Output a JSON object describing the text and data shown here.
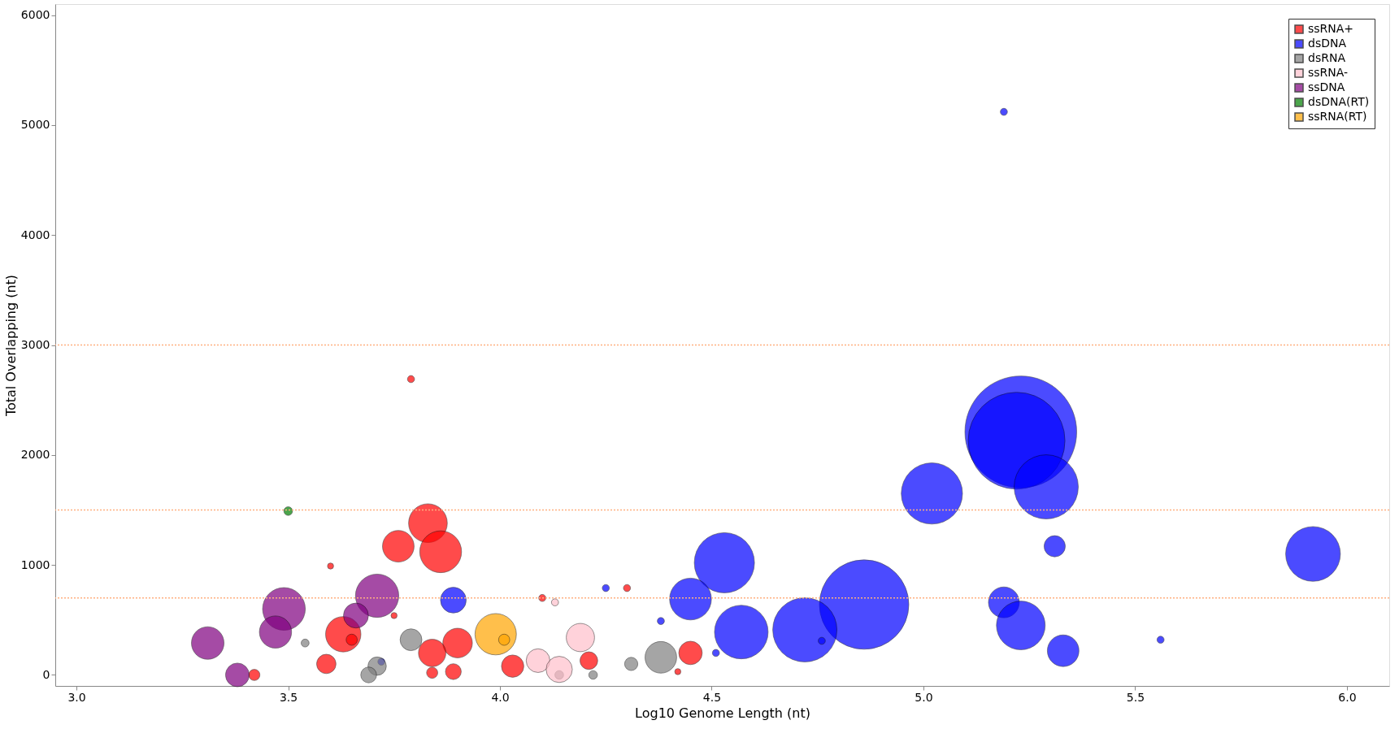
{
  "chart_data": {
    "type": "bubble",
    "xlabel": "Log10 Genome Length (nt)",
    "ylabel": "Total Overlapping (nt)",
    "xlim": [
      2.95,
      6.1
    ],
    "ylim": [
      -100,
      6100
    ],
    "xticks": [
      {
        "value": 3,
        "label": "3.0"
      },
      {
        "value": 3.5,
        "label": "3.5"
      },
      {
        "value": 4,
        "label": "4.0"
      },
      {
        "value": 4.5,
        "label": "4.5"
      },
      {
        "value": 5,
        "label": "5.0"
      },
      {
        "value": 5.5,
        "label": "5.5"
      },
      {
        "value": 6,
        "label": "6.0"
      }
    ],
    "yticks": [
      0,
      1000,
      2000,
      3000,
      4000,
      5000,
      6000
    ],
    "grid": false,
    "legend": "top right",
    "marker": "circle",
    "ref_lines": [
      {
        "axis": "y",
        "value": 3000,
        "color": "#ffb080",
        "line_style": "dotted"
      },
      {
        "axis": "y",
        "value": 1500,
        "color": "#ffb080",
        "line_style": "dotted"
      },
      {
        "axis": "y",
        "value": 700,
        "color": "#ffb080",
        "line_style": "dotted"
      }
    ],
    "series": [
      {
        "name": "ssRNA+",
        "color": "#ff0000",
        "x": [
          3.79,
          3.6,
          3.76,
          3.83,
          3.86,
          3.63,
          3.59,
          3.65,
          3.75,
          3.9,
          3.84,
          3.89,
          4.1,
          4.21,
          4.03,
          4.45,
          4.3,
          3.42,
          3.84,
          4.42
        ],
        "values": [
          2690,
          990,
          1170,
          1380,
          1120,
          370,
          100,
          320,
          540,
          290,
          200,
          30,
          700,
          130,
          80,
          200,
          790,
          0,
          20,
          30
        ],
        "sizes": [
          0.004,
          0.003,
          0.08,
          0.12,
          0.14,
          0.1,
          0.03,
          0.01,
          0.003,
          0.07,
          0.06,
          0.02,
          0.004,
          0.025,
          0.04,
          0.044,
          0.004,
          0.01,
          0.01,
          0.003
        ]
      },
      {
        "name": "dsDNA",
        "color": "#0000ff",
        "x": [
          5.19,
          5.23,
          5.22,
          5.29,
          5.02,
          4.53,
          5.31,
          5.92,
          4.86,
          4.72,
          4.57,
          4.45,
          5.19,
          5.23,
          5.33,
          3.89,
          4.25,
          4.38,
          4.51,
          5.56,
          4.76,
          3.72
        ],
        "values": [
          5120,
          2210,
          2130,
          1710,
          1650,
          1020,
          1170,
          1100,
          640,
          410,
          390,
          690,
          660,
          450,
          220,
          680,
          790,
          490,
          200,
          320,
          310,
          120
        ],
        "sizes": [
          0.004,
          1.0,
          0.75,
          0.33,
          0.3,
          0.29,
          0.036,
          0.24,
          0.64,
          0.33,
          0.23,
          0.14,
          0.076,
          0.19,
          0.08,
          0.053,
          0.004,
          0.004,
          0.004,
          0.004,
          0.004,
          0.004
        ]
      },
      {
        "name": "dsRNA",
        "color": "#808080",
        "x": [
          4.38,
          3.79,
          3.71,
          3.54,
          4.31,
          4.14,
          4.22,
          3.69
        ],
        "values": [
          160,
          320,
          80,
          290,
          100,
          0,
          0,
          0
        ],
        "sizes": [
          0.08,
          0.038,
          0.027,
          0.005,
          0.014,
          0.006,
          0.006,
          0.02
        ]
      },
      {
        "name": "ssRNA-",
        "color": "#ffc0cb",
        "x": [
          4.19,
          4.13,
          4.09,
          4.14
        ],
        "values": [
          340,
          660,
          130,
          50
        ],
        "sizes": [
          0.064,
          0.004,
          0.045,
          0.055
        ]
      },
      {
        "name": "ssDNA",
        "color": "#800080",
        "x": [
          3.71,
          3.66,
          3.49,
          3.47,
          3.31,
          3.38
        ],
        "values": [
          720,
          540,
          600,
          390,
          290,
          0
        ],
        "sizes": [
          0.15,
          0.05,
          0.146,
          0.083,
          0.085,
          0.045
        ]
      },
      {
        "name": "dsDNA(RT)",
        "color": "#008000",
        "x": [
          3.5
        ],
        "values": [
          1490
        ],
        "sizes": [
          0.006
        ]
      },
      {
        "name": "ssRNA(RT)",
        "color": "#ffa500",
        "x": [
          3.99,
          4.01
        ],
        "values": [
          370,
          320
        ],
        "sizes": [
          0.137,
          0.01
        ]
      }
    ]
  }
}
